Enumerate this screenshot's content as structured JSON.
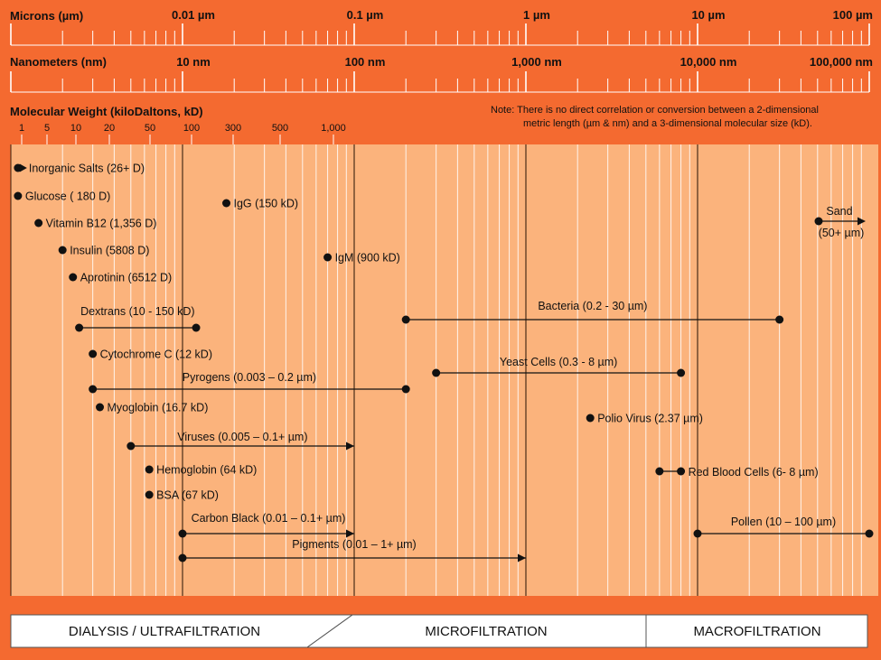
{
  "colors": {
    "header_bg": "#f46a30",
    "chart_bg": "#fbb37c",
    "major_line": "#3a2210",
    "minor_line": "#ffffff",
    "marker": "#111111",
    "band_box": "#ffffff"
  },
  "scales": {
    "microns": {
      "title": "Microns (µm)",
      "ticks": [
        {
          "um": 0.01,
          "label": "0.01 µm"
        },
        {
          "um": 0.1,
          "label": "0.1 µm"
        },
        {
          "um": 1,
          "label": "1 µm"
        },
        {
          "um": 10,
          "label": "10 µm"
        },
        {
          "um": 100,
          "label": "100 µm"
        }
      ]
    },
    "nanometers": {
      "title": "Nanometers (nm)",
      "ticks": [
        {
          "um": 0.01,
          "label": "10 nm"
        },
        {
          "um": 0.1,
          "label": "100 nm"
        },
        {
          "um": 1,
          "label": "1,000 nm"
        },
        {
          "um": 10,
          "label": "10,000 nm"
        },
        {
          "um": 100,
          "label": "100,000 nm"
        }
      ]
    },
    "molecular_weight": {
      "title": "Molecular Weight (kiloDaltons, kD)",
      "ticks": [
        "1",
        "5",
        "10",
        "20",
        "50",
        "100",
        "300",
        "500",
        "1,000"
      ]
    },
    "note": [
      "Note:  There is no direct correlation or conversion between a 2-dimensional",
      "metric length (µm & nm) and a 3-dimensional molecular size (kD)."
    ]
  },
  "items": [
    {
      "label": "Inorganic Salts (26+ D)",
      "start_um": 0.0011,
      "end_um": null,
      "arrow": true
    },
    {
      "label": "Glucose ( 180 D)",
      "start_um": 0.0011,
      "end_um": null,
      "arrow": false
    },
    {
      "label": "Vitamin B12 (1,356 D)",
      "start_um": 0.00145,
      "end_um": null,
      "arrow": false
    },
    {
      "label": "Insulin (5808 D)",
      "start_um": 0.002,
      "end_um": null,
      "arrow": false
    },
    {
      "label": "Aprotinin (6512 D)",
      "start_um": 0.0023,
      "end_um": null,
      "arrow": false
    },
    {
      "label": "IgG (150 kD)",
      "start_um": 0.018,
      "end_um": null,
      "arrow": false
    },
    {
      "label": "IgM (900 kD)",
      "start_um": 0.07,
      "end_um": null,
      "arrow": false
    },
    {
      "label": "Dextrans (10 - 150 kD)",
      "start_um": 0.0025,
      "end_um": 0.012,
      "arrow": false
    },
    {
      "label": "Cytochrome C (12 kD)",
      "start_um": 0.003,
      "end_um": null,
      "arrow": false
    },
    {
      "label": "Pyrogens (0.003 – 0.2 µm)",
      "start_um": 0.003,
      "end_um": 0.2,
      "arrow": false
    },
    {
      "label": "Myoglobin (16.7 kD)",
      "start_um": 0.0033,
      "end_um": null,
      "arrow": false
    },
    {
      "label": "Viruses (0.005 – 0.1+ µm)",
      "start_um": 0.005,
      "end_um": 0.1,
      "arrow": true
    },
    {
      "label": "Hemoglobin (64 kD)",
      "start_um": 0.0064,
      "end_um": null,
      "arrow": false
    },
    {
      "label": "BSA  (67 kD)",
      "start_um": 0.0064,
      "end_um": null,
      "arrow": false
    },
    {
      "label": "Carbon Black (0.01 – 0.1+ µm)",
      "start_um": 0.01,
      "end_um": 0.1,
      "arrow": true
    },
    {
      "label": "Pigments (0.01 – 1+ µm)",
      "start_um": 0.01,
      "end_um": 1,
      "arrow": true
    },
    {
      "label": "Bacteria (0.2 - 30 µm)",
      "start_um": 0.2,
      "end_um": 30,
      "arrow": false
    },
    {
      "label": "Yeast Cells (0.3 - 8 µm)",
      "start_um": 0.3,
      "end_um": 8,
      "arrow": false
    },
    {
      "label": "Polio Virus (2.37 µm)",
      "start_um": 2.37,
      "end_um": null,
      "arrow": false
    },
    {
      "label": "Red Blood Cells (6- 8 µm)",
      "start_um": 6,
      "end_um": 8,
      "arrow": false
    },
    {
      "label": "Sand",
      "sublabel": "(50+ µm)",
      "start_um": 50,
      "end_um": null,
      "arrow": true
    },
    {
      "label": "Pollen (10 – 100 µm)",
      "start_um": 10,
      "end_um": 100,
      "arrow": false
    }
  ],
  "bands": {
    "dialysis": "DIALYSIS / ULTRAFILTRATION",
    "micro": "MICROFILTRATION",
    "macro": "MACROFILTRATION"
  }
}
